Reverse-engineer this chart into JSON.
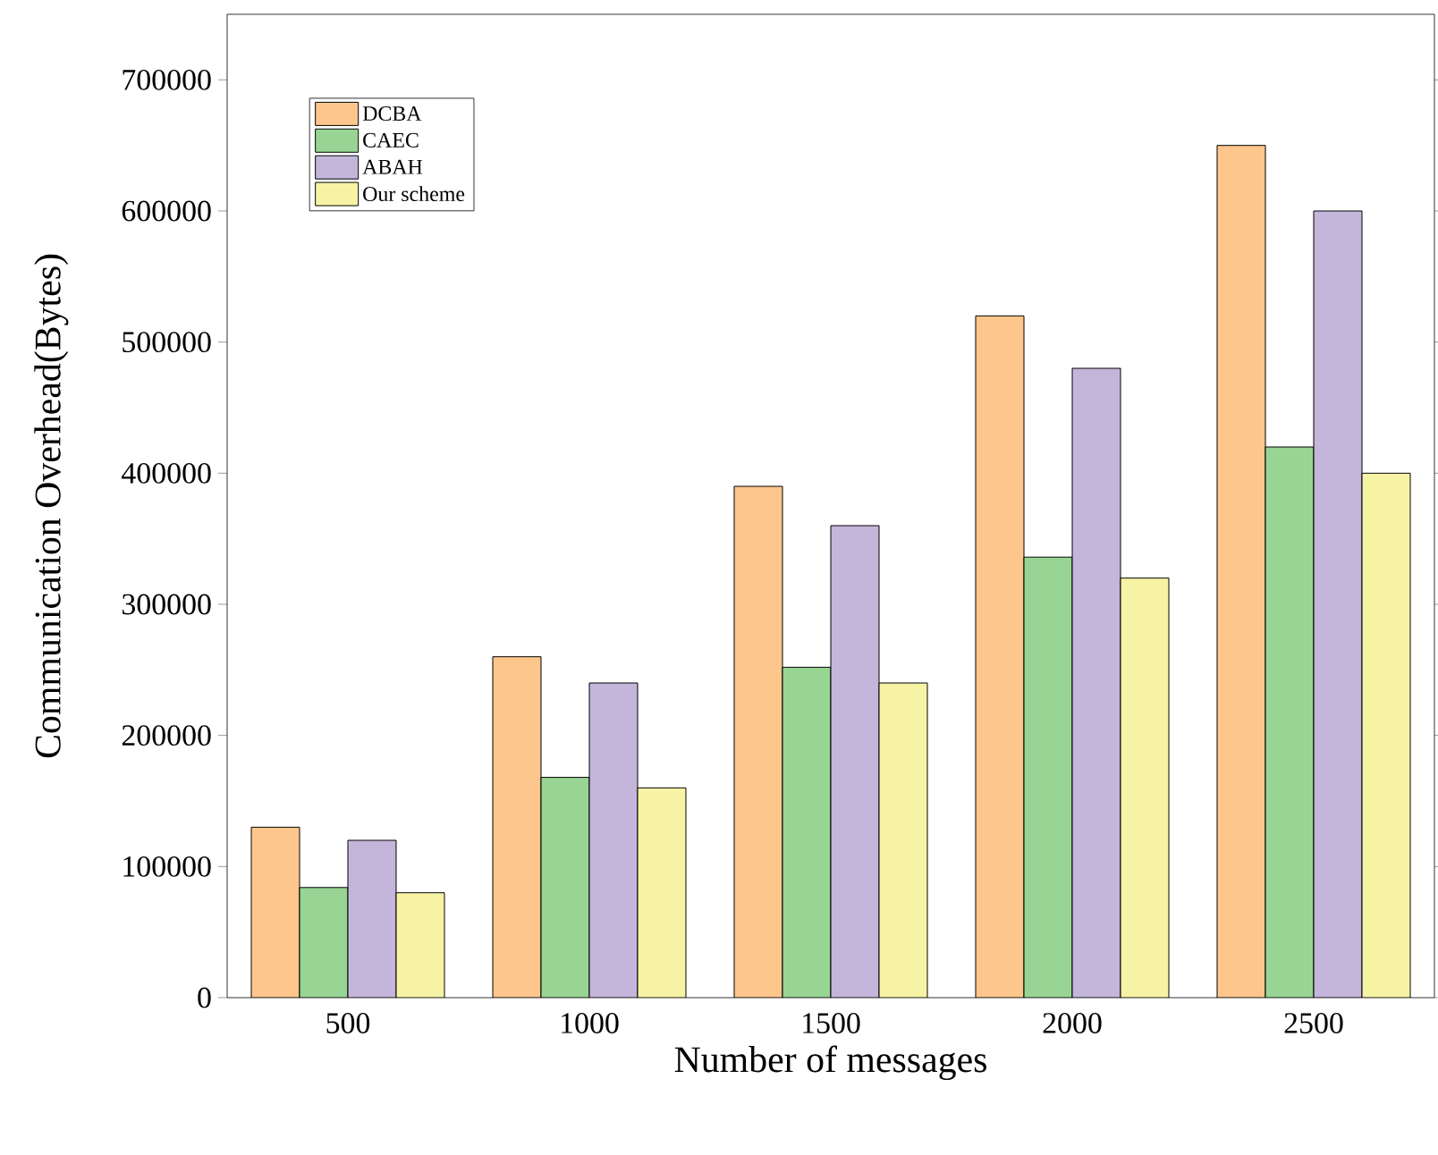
{
  "chart_data": {
    "type": "bar",
    "xlabel": "Number of messages",
    "ylabel": "Communication Overhead(Bytes)",
    "categories": [
      "500",
      "1000",
      "1500",
      "2000",
      "2500"
    ],
    "series": [
      {
        "name": "DCBA",
        "color": "#fdc68c",
        "values": [
          130000,
          260000,
          390000,
          520000,
          650000
        ]
      },
      {
        "name": "CAEC",
        "color": "#98d594",
        "values": [
          84000,
          168000,
          252000,
          336000,
          420000
        ]
      },
      {
        "name": "ABAH",
        "color": "#c4b5db",
        "values": [
          120000,
          240000,
          360000,
          480000,
          600000
        ]
      },
      {
        "name": "Our scheme",
        "color": "#f7f3a5",
        "values": [
          80000,
          160000,
          240000,
          320000,
          400000
        ]
      }
    ],
    "ylim": [
      0,
      750000
    ],
    "yticks": [
      0,
      100000,
      200000,
      300000,
      400000,
      500000,
      600000,
      700000
    ],
    "grid": false,
    "legend": "top left"
  }
}
